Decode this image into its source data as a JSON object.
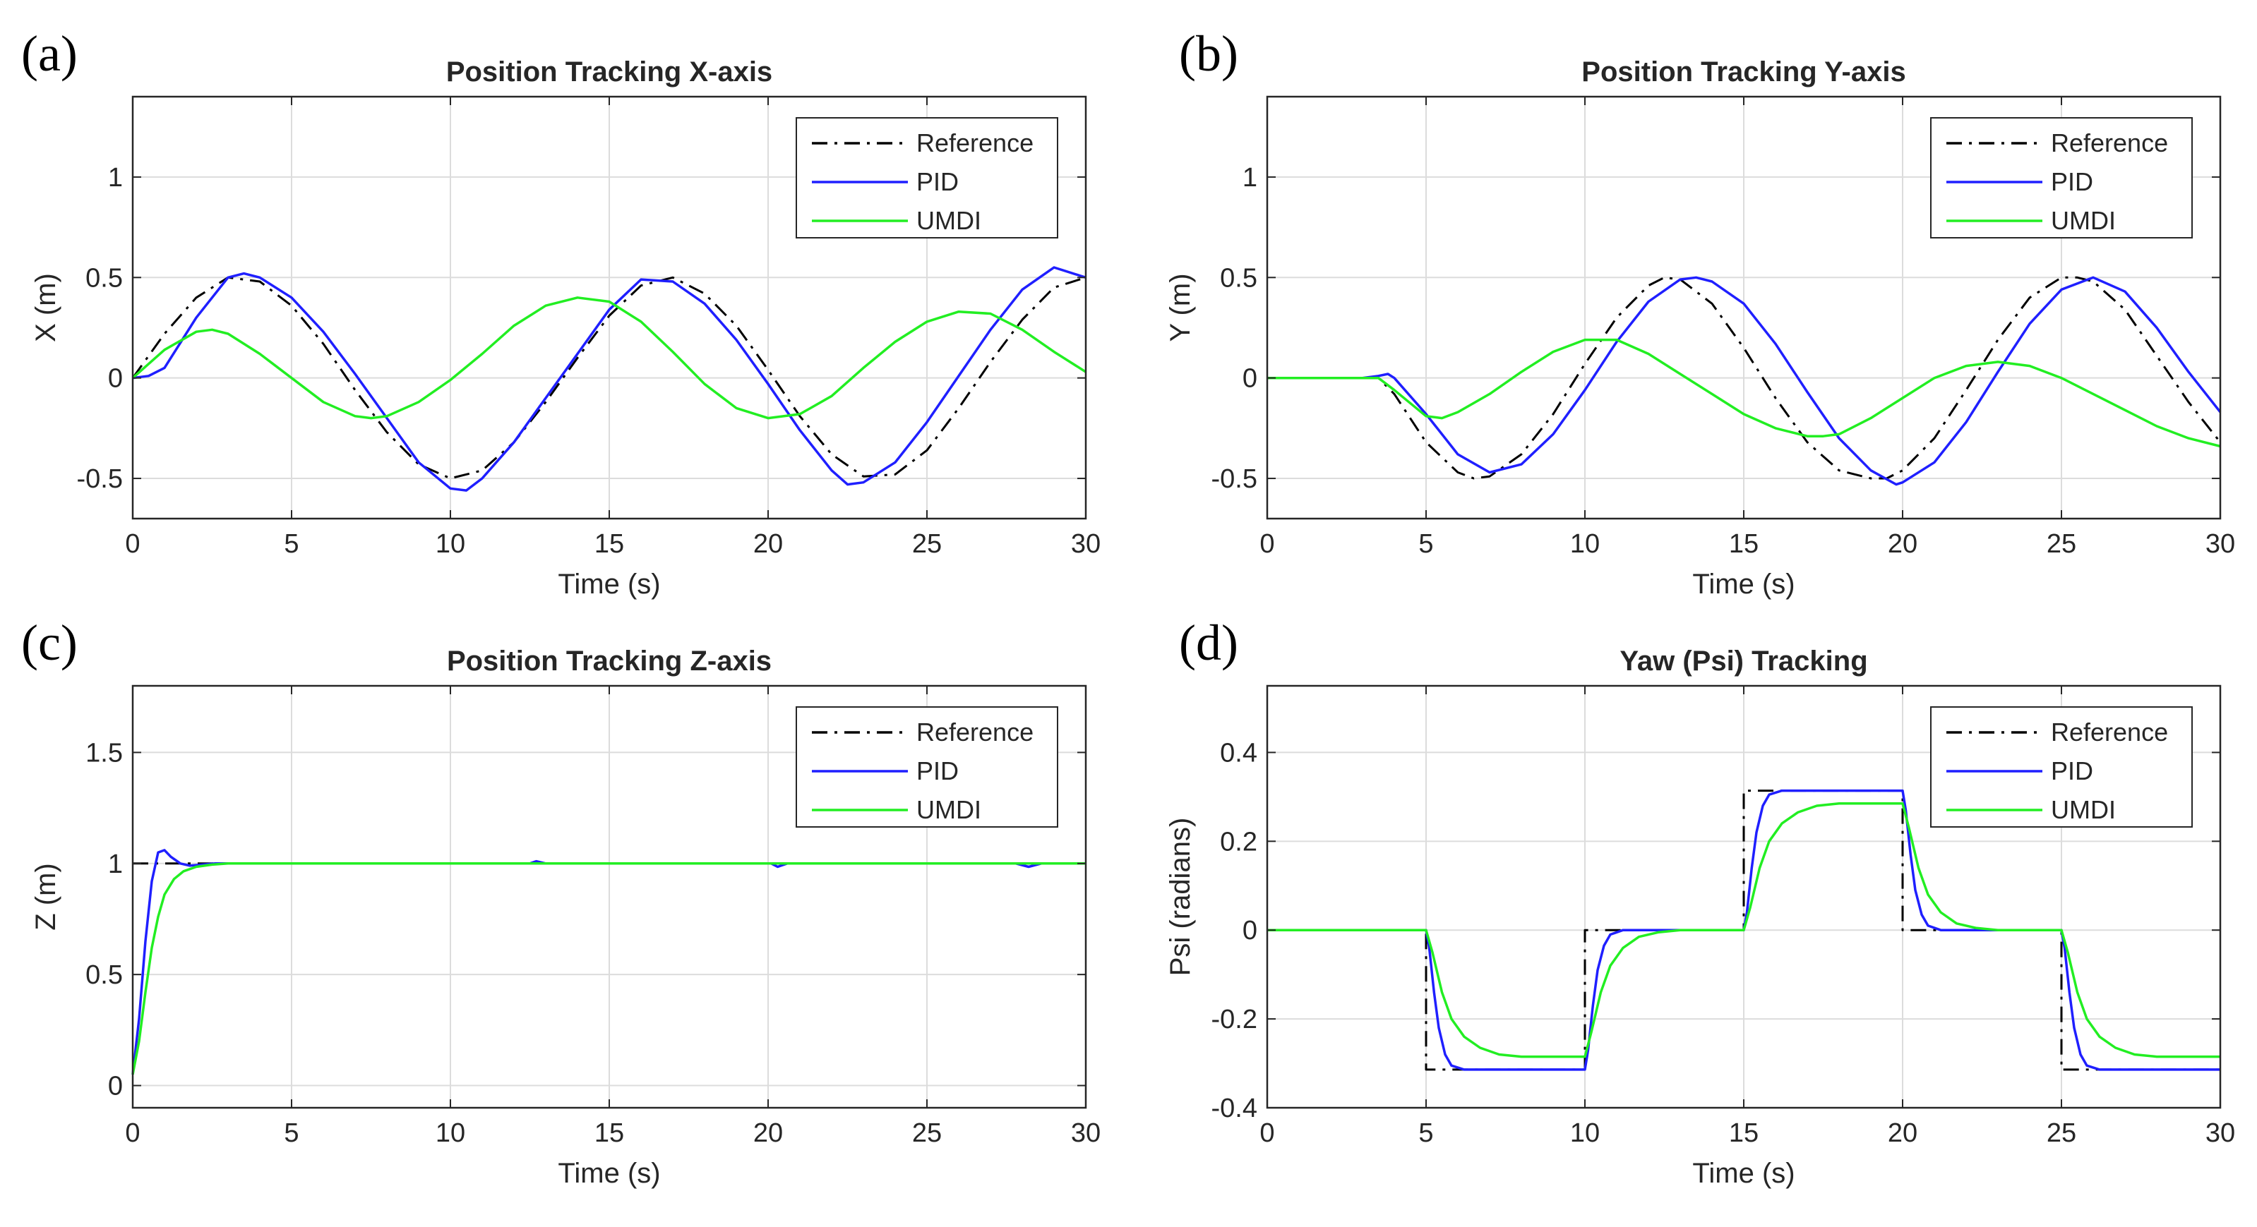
{
  "chart_data": [
    {
      "panel": "(a)",
      "type": "line",
      "title": "Position Tracking X-axis",
      "xlabel": "Time (s)",
      "ylabel": "X (m)",
      "xlim": [
        0,
        30
      ],
      "ylim": [
        -0.7,
        1.4
      ],
      "xticks": [
        0,
        5,
        10,
        15,
        20,
        25,
        30
      ],
      "yticks": [
        -0.5,
        0,
        0.5,
        1
      ],
      "ytick_labels": [
        "-0.5",
        "0",
        "0.5",
        "1"
      ],
      "grid": true,
      "legend": "top-right",
      "series": [
        {
          "name": "Reference",
          "color": "#000000",
          "style": "dashdot",
          "x": [
            0,
            1,
            2,
            3,
            4,
            5,
            6,
            7,
            8,
            9,
            10,
            11,
            12,
            13,
            14,
            15,
            16,
            17,
            18,
            19,
            20,
            21,
            22,
            23,
            24,
            25,
            26,
            27,
            28,
            29,
            30
          ],
          "y": [
            0,
            0.22,
            0.4,
            0.5,
            0.48,
            0.36,
            0.17,
            -0.06,
            -0.27,
            -0.43,
            -0.5,
            -0.46,
            -0.32,
            -0.12,
            0.1,
            0.31,
            0.46,
            0.5,
            0.42,
            0.26,
            0.04,
            -0.19,
            -0.38,
            -0.49,
            -0.48,
            -0.36,
            -0.15,
            0.08,
            0.29,
            0.45,
            0.5
          ]
        },
        {
          "name": "PID",
          "color": "#1f1fff",
          "style": "solid",
          "x": [
            0,
            0.5,
            1,
            2,
            3,
            3.5,
            4,
            5,
            6,
            7,
            8,
            9,
            10,
            10.5,
            11,
            12,
            13,
            14,
            15,
            16,
            17,
            18,
            19,
            20,
            21,
            22,
            22.5,
            23,
            24,
            25,
            26,
            27,
            28,
            29,
            30
          ],
          "y": [
            0,
            0.01,
            0.05,
            0.3,
            0.5,
            0.52,
            0.5,
            0.4,
            0.23,
            0.02,
            -0.2,
            -0.42,
            -0.55,
            -0.56,
            -0.5,
            -0.32,
            -0.1,
            0.12,
            0.34,
            0.49,
            0.48,
            0.37,
            0.19,
            -0.03,
            -0.26,
            -0.46,
            -0.53,
            -0.52,
            -0.42,
            -0.22,
            0.01,
            0.24,
            0.44,
            0.55,
            0.5
          ]
        },
        {
          "name": "UMDI",
          "color": "#22ee22",
          "style": "solid",
          "x": [
            0,
            1,
            2,
            2.5,
            3,
            4,
            5,
            6,
            7,
            7.5,
            8,
            9,
            10,
            11,
            12,
            13,
            14,
            15,
            16,
            17,
            18,
            19,
            20,
            21,
            22,
            23,
            24,
            25,
            26,
            27,
            28,
            29,
            30
          ],
          "y": [
            0,
            0.14,
            0.23,
            0.24,
            0.22,
            0.12,
            0.0,
            -0.12,
            -0.19,
            -0.2,
            -0.19,
            -0.12,
            -0.01,
            0.12,
            0.26,
            0.36,
            0.4,
            0.38,
            0.28,
            0.13,
            -0.03,
            -0.15,
            -0.2,
            -0.18,
            -0.09,
            0.05,
            0.18,
            0.28,
            0.33,
            0.32,
            0.24,
            0.13,
            0.03
          ]
        }
      ]
    },
    {
      "panel": "(b)",
      "type": "line",
      "title": "Position Tracking Y-axis",
      "xlabel": "Time (s)",
      "ylabel": "Y (m)",
      "xlim": [
        0,
        30
      ],
      "ylim": [
        -0.7,
        1.4
      ],
      "xticks": [
        0,
        5,
        10,
        15,
        20,
        25,
        30
      ],
      "yticks": [
        -0.5,
        0,
        0.5,
        1
      ],
      "ytick_labels": [
        "-0.5",
        "0",
        "0.5",
        "1"
      ],
      "grid": true,
      "legend": "top-right",
      "series": [
        {
          "name": "Reference",
          "color": "#000000",
          "style": "dashdot",
          "x": [
            0,
            1,
            2,
            3,
            3.5,
            4,
            5,
            6,
            6.5,
            7,
            8,
            9,
            10,
            11,
            12,
            12.5,
            13,
            14,
            15,
            16,
            17,
            18,
            19,
            19.5,
            20,
            21,
            22,
            23,
            24,
            25,
            25.5,
            26,
            27,
            28,
            29,
            30
          ],
          "y": [
            0,
            0,
            0,
            0,
            0,
            -0.08,
            -0.32,
            -0.47,
            -0.5,
            -0.49,
            -0.38,
            -0.18,
            0.07,
            0.3,
            0.46,
            0.5,
            0.49,
            0.37,
            0.15,
            -0.1,
            -0.32,
            -0.46,
            -0.5,
            -0.5,
            -0.46,
            -0.3,
            -0.06,
            0.19,
            0.4,
            0.5,
            0.5,
            0.48,
            0.34,
            0.11,
            -0.12,
            -0.32
          ]
        },
        {
          "name": "PID",
          "color": "#1f1fff",
          "style": "solid",
          "x": [
            0,
            1,
            2,
            3,
            3.5,
            3.8,
            4,
            5,
            6,
            7,
            8,
            9,
            10,
            11,
            12,
            13,
            13.5,
            14,
            15,
            16,
            17,
            18,
            19,
            19.8,
            20,
            21,
            22,
            23,
            24,
            25,
            26,
            27,
            28,
            29,
            30
          ],
          "y": [
            0,
            0,
            0,
            0,
            0.01,
            0.02,
            0,
            -0.18,
            -0.38,
            -0.47,
            -0.43,
            -0.28,
            -0.06,
            0.18,
            0.38,
            0.49,
            0.5,
            0.48,
            0.37,
            0.17,
            -0.07,
            -0.3,
            -0.46,
            -0.53,
            -0.52,
            -0.42,
            -0.22,
            0.03,
            0.27,
            0.44,
            0.5,
            0.43,
            0.25,
            0.03,
            -0.17
          ]
        },
        {
          "name": "UMDI",
          "color": "#22ee22",
          "style": "solid",
          "x": [
            0,
            1,
            2,
            3,
            3.5,
            4,
            5,
            5.5,
            6,
            7,
            8,
            9,
            10,
            11,
            12,
            13,
            14,
            15,
            16,
            17,
            17.5,
            18,
            19,
            20,
            21,
            22,
            23,
            24,
            25,
            26,
            27,
            28,
            29,
            30
          ],
          "y": [
            0,
            0,
            0,
            0,
            0,
            -0.06,
            -0.19,
            -0.2,
            -0.17,
            -0.08,
            0.03,
            0.13,
            0.19,
            0.19,
            0.12,
            0.02,
            -0.08,
            -0.18,
            -0.25,
            -0.29,
            -0.29,
            -0.28,
            -0.2,
            -0.1,
            0.0,
            0.06,
            0.08,
            0.06,
            0.0,
            -0.08,
            -0.16,
            -0.24,
            -0.3,
            -0.34
          ]
        }
      ]
    },
    {
      "panel": "(c)",
      "type": "line",
      "title": "Position Tracking Z-axis",
      "xlabel": "Time (s)",
      "ylabel": "Z (m)",
      "xlim": [
        0,
        30
      ],
      "ylim": [
        -0.1,
        1.8
      ],
      "xticks": [
        0,
        5,
        10,
        15,
        20,
        25,
        30
      ],
      "yticks": [
        0,
        0.5,
        1,
        1.5
      ],
      "ytick_labels": [
        "0",
        "0.5",
        "1",
        "1.5"
      ],
      "grid": true,
      "legend": "top-right",
      "series": [
        {
          "name": "Reference",
          "color": "#000000",
          "style": "dashdot",
          "x": [
            0,
            30
          ],
          "y": [
            1,
            1
          ]
        },
        {
          "name": "PID",
          "color": "#1f1fff",
          "style": "solid",
          "x": [
            0,
            0.2,
            0.4,
            0.6,
            0.8,
            1.0,
            1.2,
            1.5,
            1.8,
            2.2,
            2.6,
            3,
            6,
            12.5,
            12.7,
            13,
            20.1,
            20.3,
            20.6,
            27.8,
            28.2,
            28.6,
            30
          ],
          "y": [
            0.05,
            0.3,
            0.65,
            0.92,
            1.05,
            1.06,
            1.03,
            1.0,
            0.99,
            0.995,
            1.0,
            1.0,
            1.0,
            1.0,
            1.01,
            1.0,
            1.0,
            0.985,
            1.0,
            1.0,
            0.985,
            1.0,
            1.0
          ]
        },
        {
          "name": "UMDI",
          "color": "#22ee22",
          "style": "solid",
          "x": [
            0,
            0.2,
            0.4,
            0.6,
            0.8,
            1.0,
            1.3,
            1.6,
            2.0,
            2.5,
            3,
            4,
            30
          ],
          "y": [
            0.05,
            0.2,
            0.42,
            0.62,
            0.76,
            0.86,
            0.93,
            0.965,
            0.985,
            0.995,
            1.0,
            1.0,
            1.0
          ]
        }
      ]
    },
    {
      "panel": "(d)",
      "type": "line",
      "title": "Yaw (Psi) Tracking",
      "xlabel": "Time (s)",
      "ylabel": "Psi (radians)",
      "xlim": [
        0,
        30
      ],
      "ylim": [
        -0.4,
        0.55
      ],
      "xticks": [
        0,
        5,
        10,
        15,
        20,
        25,
        30
      ],
      "yticks": [
        -0.4,
        -0.2,
        0,
        0.2,
        0.4
      ],
      "ytick_labels": [
        "-0.4",
        "-0.2",
        "0",
        "0.2",
        "0.4"
      ],
      "grid": true,
      "legend": "top-right",
      "series": [
        {
          "name": "Reference",
          "color": "#000000",
          "style": "dashdot",
          "x": [
            0,
            5,
            5,
            10,
            10,
            15,
            15,
            20,
            20,
            25,
            25,
            30
          ],
          "y": [
            0,
            0,
            -0.314,
            -0.314,
            0,
            0,
            0.314,
            0.314,
            0,
            0,
            -0.314,
            -0.314
          ]
        },
        {
          "name": "PID",
          "color": "#1f1fff",
          "style": "solid",
          "x": [
            0,
            5.0,
            5.1,
            5.25,
            5.4,
            5.6,
            5.8,
            6.2,
            10.0,
            10.1,
            10.25,
            10.4,
            10.6,
            10.8,
            11.2,
            15.0,
            15.1,
            15.25,
            15.4,
            15.6,
            15.8,
            16.2,
            20.0,
            20.1,
            20.25,
            20.4,
            20.6,
            20.8,
            21.2,
            25.0,
            25.1,
            25.25,
            25.4,
            25.6,
            25.8,
            26.2,
            30
          ],
          "y": [
            0,
            0,
            -0.04,
            -0.14,
            -0.22,
            -0.28,
            -0.305,
            -0.314,
            -0.314,
            -0.27,
            -0.17,
            -0.09,
            -0.035,
            -0.01,
            0,
            0,
            0.04,
            0.14,
            0.22,
            0.28,
            0.305,
            0.314,
            0.314,
            0.27,
            0.17,
            0.09,
            0.035,
            0.01,
            0,
            0,
            -0.04,
            -0.14,
            -0.22,
            -0.28,
            -0.305,
            -0.314,
            -0.314
          ]
        },
        {
          "name": "UMDI",
          "color": "#22ee22",
          "style": "solid",
          "x": [
            0,
            5.0,
            5.2,
            5.5,
            5.8,
            6.2,
            6.7,
            7.3,
            8,
            10.0,
            10.2,
            10.5,
            10.8,
            11.2,
            11.7,
            12.3,
            13,
            15.0,
            15.2,
            15.5,
            15.8,
            16.2,
            16.7,
            17.3,
            18,
            20.0,
            20.2,
            20.5,
            20.8,
            21.2,
            21.7,
            22.3,
            23,
            25.0,
            25.2,
            25.5,
            25.8,
            26.2,
            26.7,
            27.3,
            28,
            30
          ],
          "y": [
            0,
            0,
            -0.05,
            -0.14,
            -0.2,
            -0.24,
            -0.265,
            -0.28,
            -0.285,
            -0.285,
            -0.23,
            -0.14,
            -0.08,
            -0.04,
            -0.015,
            -0.005,
            0,
            0,
            0.05,
            0.14,
            0.2,
            0.24,
            0.265,
            0.28,
            0.285,
            0.285,
            0.23,
            0.14,
            0.08,
            0.04,
            0.015,
            0.005,
            0,
            0,
            -0.05,
            -0.14,
            -0.2,
            -0.24,
            -0.265,
            -0.28,
            -0.285,
            -0.285
          ]
        }
      ]
    }
  ]
}
